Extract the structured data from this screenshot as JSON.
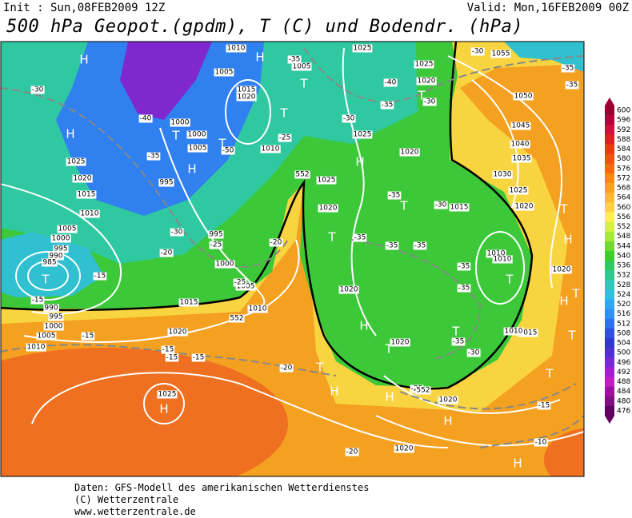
{
  "header": {
    "init": "Init : Sun,08FEB2009 12Z",
    "valid": "Valid: Mon,16FEB2009 00Z",
    "title": "500 hPa Geopot.(gpdm), T (C) und Bodendr. (hPa)"
  },
  "map": {
    "labels": [
      "H",
      "H",
      "H",
      "H",
      "H",
      "H",
      "H",
      "H",
      "H",
      "H",
      "H",
      "H",
      "H",
      "T",
      "T",
      "T",
      "T",
      "T",
      "T",
      "T",
      "T",
      "T",
      "T",
      "T",
      "T",
      "T",
      "T",
      "T",
      "T",
      "1010",
      "1005",
      "1005",
      "1015",
      "1020",
      "1000",
      "1000",
      "1005",
      "1010",
      "1025",
      "1025",
      "1020",
      "1055",
      "1050",
      "1045",
      "1040",
      "1035",
      "1030",
      "1025",
      "1020",
      "1025",
      "1020",
      "1025",
      "1020",
      "1015",
      "1020",
      "1020",
      "1015",
      "1020",
      "1020",
      "1025",
      "1020",
      "1015",
      "1010",
      "1005",
      "1000",
      "995",
      "995",
      "1025",
      "1020",
      "1015",
      "1010",
      "1005",
      "1000",
      "995",
      "990",
      "985",
      "990",
      "995",
      "1000",
      "1005",
      "1010",
      "1010",
      "1010",
      "1020",
      "1010",
      "-30",
      "-40",
      "-35",
      "-30",
      "-20",
      "-15",
      "-15",
      "-15",
      "-15",
      "-15",
      "-15",
      "-20",
      "-25",
      "-50",
      "-30",
      "-35",
      "-40",
      "-35",
      "-30",
      "-30",
      "-35",
      "-35",
      "-35",
      "-30",
      "-35",
      "-35",
      "-35",
      "-35",
      "-35",
      "-35",
      "-30",
      "-25",
      "-20",
      "-25",
      "-15",
      "-10",
      "-20",
      "-25",
      "552",
      "552",
      "552"
    ]
  },
  "colorbar": {
    "values": [
      600,
      596,
      592,
      588,
      584,
      580,
      576,
      572,
      568,
      564,
      560,
      556,
      552,
      548,
      544,
      540,
      536,
      532,
      528,
      524,
      520,
      516,
      512,
      508,
      504,
      500,
      496,
      492,
      488,
      484,
      480,
      476
    ],
    "colors": [
      "#9a0030",
      "#b8003a",
      "#d0103a",
      "#e02020",
      "#ec3a10",
      "#f05010",
      "#f46a10",
      "#f88a10",
      "#fca020",
      "#ffb830",
      "#ffd040",
      "#fff050",
      "#d8f040",
      "#a8e838",
      "#70d830",
      "#40cc30",
      "#30c860",
      "#30c890",
      "#30c8b8",
      "#30c0e0",
      "#30a8f0",
      "#3090f0",
      "#3070f0",
      "#3050e0",
      "#3038d0",
      "#5030d0",
      "#7828d0",
      "#a020d0",
      "#c020c0",
      "#a010a0",
      "#801080",
      "#600060"
    ]
  },
  "footer": {
    "lines": [
      "Daten: GFS-Modell des amerikanischen Wetterdienstes",
      "(C) Wetterzentrale",
      "www.wetterzentrale.de"
    ]
  }
}
